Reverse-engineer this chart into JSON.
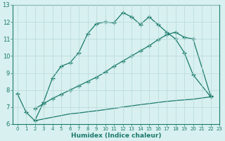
{
  "line1_x": [
    0,
    1,
    2,
    3,
    4,
    5,
    6,
    7,
    8,
    9,
    10,
    11,
    12,
    13,
    14,
    15,
    16,
    17,
    18,
    19,
    20,
    22
  ],
  "line1_y": [
    7.8,
    6.7,
    6.2,
    7.3,
    8.7,
    9.4,
    9.6,
    10.2,
    11.3,
    11.9,
    12.0,
    11.95,
    12.55,
    12.3,
    11.85,
    12.3,
    11.85,
    11.4,
    11.0,
    10.2,
    8.9,
    7.6
  ],
  "line2_x": [
    2,
    3,
    4,
    5,
    6,
    7,
    8,
    9,
    10,
    11,
    12,
    13,
    14,
    15,
    16,
    17,
    18,
    19,
    20,
    22
  ],
  "line2_y": [
    6.9,
    7.2,
    7.5,
    7.75,
    8.0,
    8.25,
    8.5,
    8.75,
    9.05,
    9.4,
    9.7,
    10.0,
    10.3,
    10.6,
    10.95,
    11.25,
    11.4,
    11.1,
    11.0,
    7.65
  ],
  "line3_x": [
    2,
    3,
    4,
    5,
    6,
    7,
    8,
    9,
    10,
    11,
    12,
    13,
    14,
    15,
    16,
    17,
    18,
    19,
    20,
    22
  ],
  "line3_y": [
    6.2,
    6.3,
    6.4,
    6.5,
    6.6,
    6.65,
    6.72,
    6.78,
    6.85,
    6.92,
    7.0,
    7.07,
    7.14,
    7.2,
    7.27,
    7.33,
    7.38,
    7.42,
    7.46,
    7.6
  ],
  "line_color": "#1a7a6a",
  "bg_color": "#d8f0f0",
  "grid_color": "#b8d8d8",
  "xlabel": "Humidex (Indice chaleur)",
  "ylim": [
    6,
    13
  ],
  "xlim": [
    -0.5,
    23
  ],
  "yticks": [
    6,
    7,
    8,
    9,
    10,
    11,
    12,
    13
  ],
  "xticks": [
    0,
    1,
    2,
    3,
    4,
    5,
    6,
    7,
    8,
    9,
    10,
    11,
    12,
    13,
    14,
    15,
    16,
    17,
    18,
    19,
    20,
    21,
    22,
    23
  ]
}
